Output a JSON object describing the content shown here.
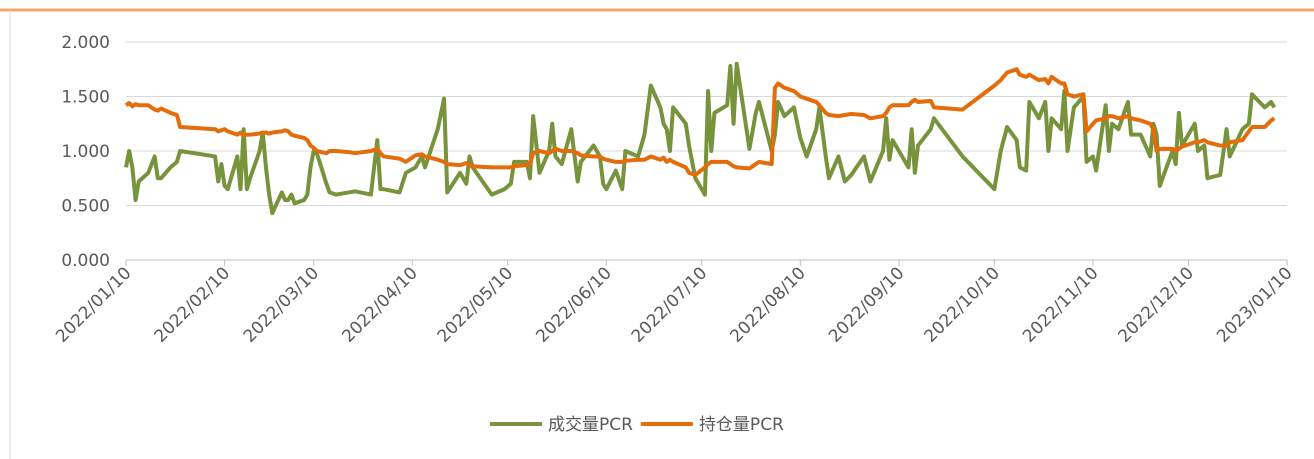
{
  "chart_data": {
    "type": "line",
    "x": [
      "2022/01/10",
      "2022/01/11",
      "2022/01/12",
      "2022/01/13",
      "2022/01/14",
      "2022/01/17",
      "2022/01/19",
      "2022/01/20",
      "2022/01/21",
      "2022/01/24",
      "2022/01/26",
      "2022/01/27",
      "2022/02/07",
      "2022/02/08",
      "2022/02/09",
      "2022/02/10",
      "2022/02/11",
      "2022/02/14",
      "2022/02/15",
      "2022/02/16",
      "2022/02/17",
      "2022/02/18",
      "2022/02/21",
      "2022/02/22",
      "2022/02/23",
      "2022/02/24",
      "2022/02/25",
      "2022/02/28",
      "2022/03/01",
      "2022/03/02",
      "2022/03/03",
      "2022/03/04",
      "2022/03/07",
      "2022/03/08",
      "2022/03/09",
      "2022/03/10",
      "2022/03/11",
      "2022/03/14",
      "2022/03/15",
      "2022/03/17",
      "2022/03/21",
      "2022/03/23",
      "2022/03/28",
      "2022/03/30",
      "2022/03/31",
      "2022/04/01",
      "2022/04/06",
      "2022/04/08",
      "2022/04/11",
      "2022/04/13",
      "2022/04/14",
      "2022/04/18",
      "2022/04/20",
      "2022/04/21",
      "2022/04/25",
      "2022/04/27",
      "2022/04/28",
      "2022/04/29",
      "2022/05/05",
      "2022/05/09",
      "2022/05/11",
      "2022/05/12",
      "2022/05/16",
      "2022/05/17",
      "2022/05/18",
      "2022/05/20",
      "2022/05/23",
      "2022/05/24",
      "2022/05/25",
      "2022/05/27",
      "2022/05/30",
      "2022/06/01",
      "2022/06/02",
      "2022/06/06",
      "2022/06/08",
      "2022/06/09",
      "2022/06/10",
      "2022/06/13",
      "2022/06/15",
      "2022/06/16",
      "2022/06/20",
      "2022/06/22",
      "2022/06/24",
      "2022/06/27",
      "2022/06/28",
      "2022/06/29",
      "2022/06/30",
      "2022/07/01",
      "2022/07/05",
      "2022/07/06",
      "2022/07/08",
      "2022/07/11",
      "2022/07/12",
      "2022/07/13",
      "2022/07/14",
      "2022/07/18",
      "2022/07/19",
      "2022/07/20",
      "2022/07/21",
      "2022/07/25",
      "2022/07/27",
      "2022/07/28",
      "2022/08/01",
      "2022/08/02",
      "2022/08/03",
      "2022/08/05",
      "2022/08/08",
      "2022/08/10",
      "2022/08/12",
      "2022/08/15",
      "2022/08/16",
      "2022/08/18",
      "2022/08/19",
      "2022/08/22",
      "2022/08/24",
      "2022/08/26",
      "2022/08/30",
      "2022/09/01",
      "2022/09/05",
      "2022/09/06",
      "2022/09/07",
      "2022/09/08",
      "2022/09/13",
      "2022/09/14",
      "2022/09/15",
      "2022/09/16",
      "2022/09/20",
      "2022/09/21",
      "2022/09/30",
      "2022/10/10",
      "2022/10/12",
      "2022/10/14",
      "2022/10/17",
      "2022/10/18",
      "2022/10/20",
      "2022/10/21",
      "2022/10/24",
      "2022/10/26",
      "2022/10/27",
      "2022/10/28",
      "2022/10/31",
      "2022/11/01",
      "2022/11/02",
      "2022/11/04",
      "2022/11/07",
      "2022/11/08",
      "2022/11/10",
      "2022/11/11",
      "2022/11/14",
      "2022/11/15",
      "2022/11/16",
      "2022/11/18",
      "2022/11/21",
      "2022/11/22",
      "2022/11/25",
      "2022/11/28",
      "2022/11/29",
      "2022/11/30",
      "2022/12/01",
      "2022/12/05",
      "2022/12/06",
      "2022/12/07",
      "2022/12/08",
      "2022/12/12",
      "2022/12/13",
      "2022/12/15",
      "2022/12/16",
      "2022/12/20",
      "2022/12/22",
      "2022/12/23",
      "2022/12/27",
      "2022/12/29",
      "2022/12/30",
      "2023/01/03",
      "2023/01/05",
      "2023/01/06"
    ],
    "series": [
      {
        "name": "成交量PCR",
        "color": "#77933c",
        "values": [
          0.85,
          1.0,
          0.85,
          0.55,
          0.72,
          0.8,
          0.95,
          0.75,
          0.75,
          0.85,
          0.9,
          1.0,
          0.95,
          0.72,
          0.88,
          0.68,
          0.65,
          0.95,
          0.65,
          1.2,
          0.65,
          0.75,
          1.0,
          1.17,
          0.85,
          0.6,
          0.43,
          0.62,
          0.55,
          0.55,
          0.6,
          0.52,
          0.55,
          0.6,
          0.85,
          1.0,
          0.98,
          0.7,
          0.62,
          0.6,
          0.62,
          0.63,
          0.6,
          1.1,
          0.65,
          0.65,
          0.62,
          0.8,
          0.85,
          0.95,
          0.85,
          1.2,
          1.48,
          0.62,
          0.8,
          0.7,
          0.95,
          0.85,
          0.6,
          0.65,
          0.7,
          0.9,
          0.9,
          0.75,
          1.32,
          0.8,
          1.0,
          1.25,
          0.95,
          0.88,
          1.2,
          0.72,
          0.9,
          1.05,
          0.95,
          0.7,
          0.65,
          0.82,
          0.65,
          1.0,
          0.95,
          1.15,
          1.6,
          1.4,
          1.25,
          1.2,
          1.0,
          1.4,
          1.25,
          1.05,
          0.75,
          0.6,
          1.55,
          1.0,
          1.35,
          1.42,
          1.78,
          1.25,
          1.8,
          1.02,
          1.35,
          1.45,
          1.0,
          1.15,
          1.45,
          1.32,
          1.4,
          1.12,
          0.95,
          1.2,
          1.4,
          0.95,
          0.75,
          0.95,
          0.72,
          0.78,
          0.95,
          0.72,
          1.0,
          1.3,
          0.92,
          1.1,
          0.85,
          1.2,
          0.8,
          1.05,
          1.2,
          1.3,
          0.95,
          0.65,
          1.0,
          1.22,
          1.1,
          0.85,
          0.82,
          1.45,
          1.3,
          1.45,
          1.0,
          1.3,
          1.2,
          1.55,
          1.0,
          1.4,
          1.5,
          0.9,
          0.95,
          0.82,
          1.42,
          1.0,
          1.25,
          1.2,
          1.45,
          1.15,
          1.15,
          0.95,
          1.25,
          1.15,
          0.68,
          1.0,
          0.88,
          1.35,
          1.05,
          1.25,
          1.0,
          1.05,
          0.75,
          0.78,
          1.2,
          0.95,
          1.2,
          1.25,
          1.52,
          1.4,
          1.45,
          1.4
        ]
      },
      {
        "name": "持仓量PCR",
        "color": "#e46c0a",
        "values": [
          1.42,
          1.44,
          1.41,
          1.43,
          1.42,
          1.42,
          1.38,
          1.37,
          1.39,
          1.35,
          1.33,
          1.22,
          1.2,
          1.18,
          1.19,
          1.2,
          1.18,
          1.15,
          1.17,
          1.14,
          1.15,
          1.15,
          1.16,
          1.17,
          1.17,
          1.16,
          1.17,
          1.18,
          1.19,
          1.18,
          1.15,
          1.14,
          1.12,
          1.1,
          1.05,
          1.03,
          1.0,
          0.98,
          1.0,
          1.0,
          0.99,
          0.98,
          1.0,
          1.02,
          0.98,
          0.95,
          0.93,
          0.9,
          0.96,
          0.97,
          0.95,
          0.92,
          0.9,
          0.88,
          0.87,
          0.89,
          0.87,
          0.86,
          0.85,
          0.85,
          0.85,
          0.86,
          0.87,
          0.88,
          0.98,
          1.0,
          0.98,
          1.0,
          1.02,
          1.0,
          1.0,
          0.98,
          0.96,
          0.95,
          0.95,
          0.93,
          0.92,
          0.9,
          0.9,
          0.91,
          0.92,
          0.92,
          0.95,
          0.92,
          0.94,
          0.9,
          0.92,
          0.9,
          0.85,
          0.8,
          0.78,
          0.85,
          0.88,
          0.9,
          0.9,
          0.9,
          0.88,
          0.86,
          0.85,
          0.84,
          0.88,
          0.9,
          0.88,
          1.58,
          1.62,
          1.58,
          1.55,
          1.5,
          1.48,
          1.45,
          1.42,
          1.35,
          1.33,
          1.32,
          1.33,
          1.34,
          1.33,
          1.3,
          1.32,
          1.35,
          1.4,
          1.42,
          1.42,
          1.45,
          1.47,
          1.45,
          1.46,
          1.4,
          1.38,
          1.6,
          1.65,
          1.72,
          1.75,
          1.7,
          1.68,
          1.7,
          1.65,
          1.66,
          1.62,
          1.68,
          1.62,
          1.62,
          1.52,
          1.5,
          1.52,
          1.18,
          1.25,
          1.28,
          1.3,
          1.32,
          1.32,
          1.3,
          1.32,
          1.3,
          1.28,
          1.25,
          1.2,
          1.0,
          1.02,
          1.02,
          1.0,
          1.02,
          1.04,
          1.08,
          1.08,
          1.1,
          1.08,
          1.05,
          1.05,
          1.08,
          1.1,
          1.18,
          1.22,
          1.22,
          1.28,
          1.3
        ]
      }
    ],
    "xlim": [
      "2022/01/10",
      "2023/01/10"
    ],
    "xticks": [
      "2022/01/10",
      "2022/02/10",
      "2022/03/10",
      "2022/04/10",
      "2022/05/10",
      "2022/06/10",
      "2022/07/10",
      "2022/08/10",
      "2022/09/10",
      "2022/10/10",
      "2022/11/10",
      "2022/12/10",
      "2023/01/10"
    ],
    "ylim": [
      0,
      2
    ],
    "yticks": [
      {
        "value": 0,
        "label": "0.000"
      },
      {
        "value": 0.5,
        "label": "0.500"
      },
      {
        "value": 1,
        "label": "1.000"
      },
      {
        "value": 1.5,
        "label": "1.500"
      },
      {
        "value": 2,
        "label": "2.000"
      }
    ],
    "grid": true,
    "legend": "bottom"
  }
}
